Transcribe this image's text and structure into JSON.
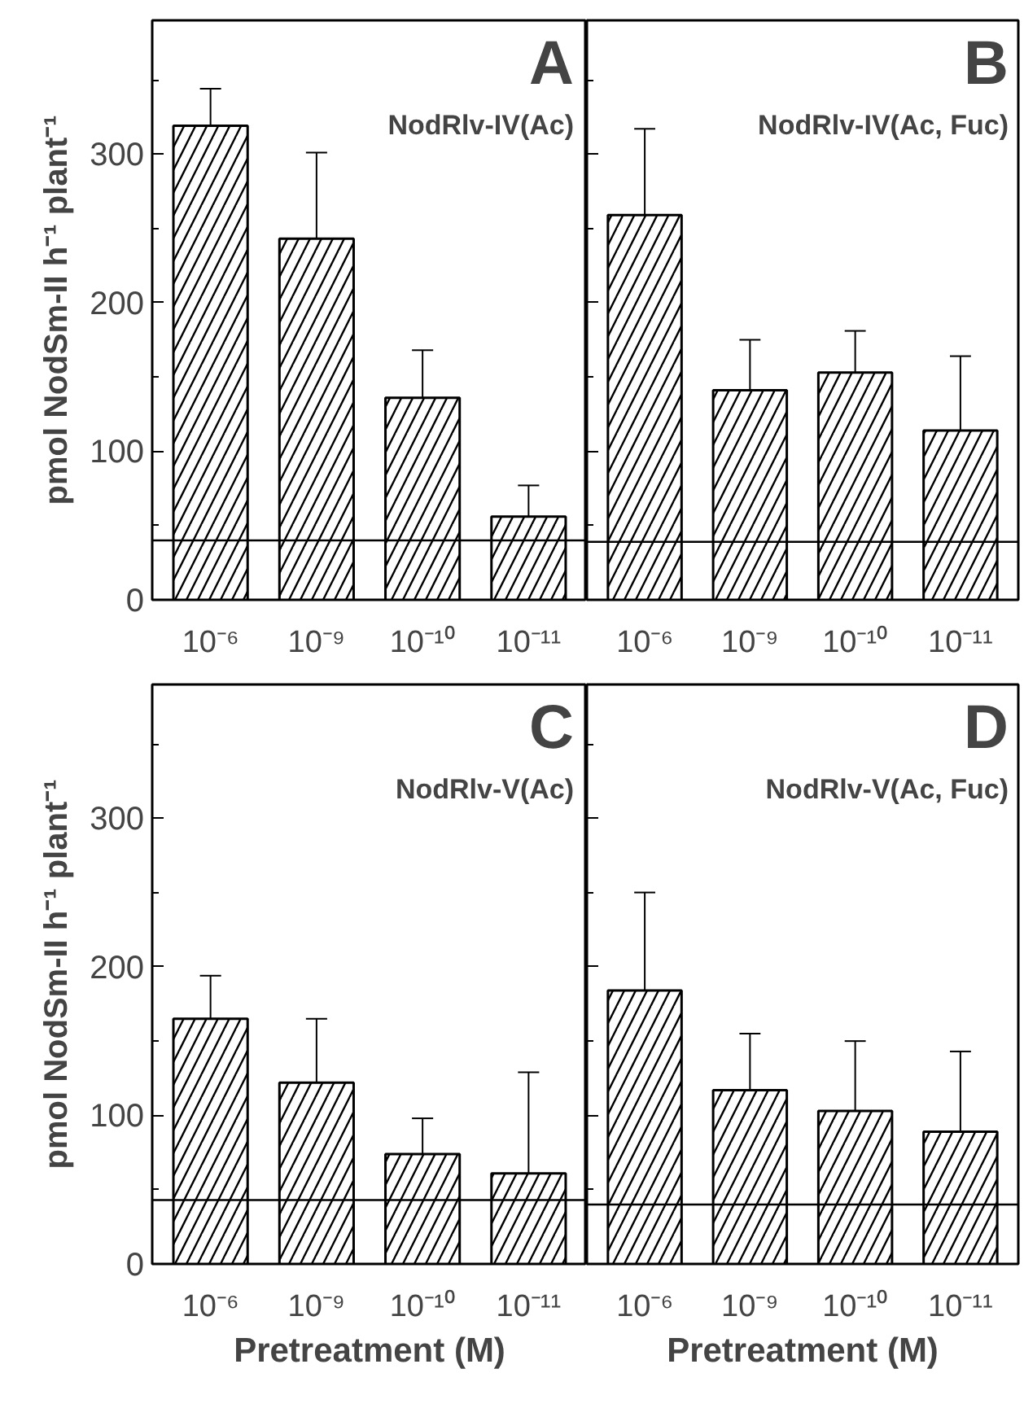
{
  "chart_data": [
    {
      "type": "bar",
      "title": "A",
      "subtitle": "NodRlv-IV(Ac)",
      "ylabel": "pmol NodSm-II h⁻¹ plant⁻¹",
      "categories": [
        "10⁻⁶",
        "10⁻⁹",
        "10⁻¹⁰",
        "10⁻¹¹"
      ],
      "values": [
        319,
        243,
        136,
        56
      ],
      "errors": [
        [
          319,
          344
        ],
        [
          243,
          301
        ],
        [
          136,
          168
        ],
        [
          56,
          77
        ]
      ],
      "color": "#000000",
      "ylim": [
        0,
        390
      ],
      "yticks": [
        0,
        {
          "value": 50,
          "label": null
        },
        100,
        {
          "value": 150,
          "label": null
        },
        200,
        {
          "value": 250,
          "label": null
        },
        300,
        {
          "value": 350,
          "label": null
        }
      ],
      "ref_lines": [
        {
          "axis": "y",
          "value": 40
        }
      ],
      "grid": false
    },
    {
      "type": "bar",
      "title": "B",
      "subtitle": "NodRlv-IV(Ac, Fuc)",
      "categories": [
        "10⁻⁶",
        "10⁻⁹",
        "10⁻¹⁰",
        "10⁻¹¹"
      ],
      "values": [
        259,
        141,
        153,
        114
      ],
      "errors": [
        [
          259,
          317
        ],
        [
          141,
          175
        ],
        [
          153,
          181
        ],
        [
          114,
          164
        ]
      ],
      "color": "#000000",
      "ylim": [
        0,
        390
      ],
      "yticks": [
        0,
        {
          "value": 50,
          "label": null
        },
        100,
        {
          "value": 150,
          "label": null
        },
        200,
        {
          "value": 250,
          "label": null
        },
        300,
        {
          "value": 350,
          "label": null
        }
      ],
      "ref_lines": [
        {
          "axis": "y",
          "value": 39
        }
      ],
      "tick_labels": "x",
      "grid": false
    },
    {
      "type": "bar",
      "title": "C",
      "subtitle": "NodRlv-V(Ac)",
      "ylabel": "pmol NodSm-II h⁻¹ plant⁻¹",
      "xlabel": "Pretreatment (M)",
      "categories": [
        "10⁻⁶",
        "10⁻⁹",
        "10⁻¹⁰",
        "10⁻¹¹"
      ],
      "values": [
        165,
        122,
        74,
        61
      ],
      "errors": [
        [
          165,
          194
        ],
        [
          122,
          165
        ],
        [
          74,
          98
        ],
        [
          61,
          129
        ]
      ],
      "color": "#000000",
      "ylim": [
        0,
        390
      ],
      "yticks": [
        0,
        {
          "value": 50,
          "label": null
        },
        100,
        {
          "value": 150,
          "label": null
        },
        200,
        {
          "value": 250,
          "label": null
        },
        300,
        {
          "value": 350,
          "label": null
        }
      ],
      "ref_lines": [
        {
          "axis": "y",
          "value": 43
        }
      ],
      "grid": false
    },
    {
      "type": "bar",
      "title": "D",
      "subtitle": "NodRlv-V(Ac, Fuc)",
      "xlabel": "Pretreatment (M)",
      "categories": [
        "10⁻⁶",
        "10⁻⁹",
        "10⁻¹⁰",
        "10⁻¹¹"
      ],
      "values": [
        184,
        117,
        103,
        89
      ],
      "errors": [
        [
          184,
          250
        ],
        [
          117,
          155
        ],
        [
          103,
          150
        ],
        [
          89,
          143
        ]
      ],
      "color": "#000000",
      "ylim": [
        0,
        390
      ],
      "yticks": [
        0,
        {
          "value": 50,
          "label": null
        },
        100,
        {
          "value": 150,
          "label": null
        },
        200,
        {
          "value": 250,
          "label": null
        },
        300,
        {
          "value": 350,
          "label": null
        }
      ],
      "ref_lines": [
        {
          "axis": "y",
          "value": 40
        }
      ],
      "tick_labels": "x",
      "grid": false
    }
  ]
}
